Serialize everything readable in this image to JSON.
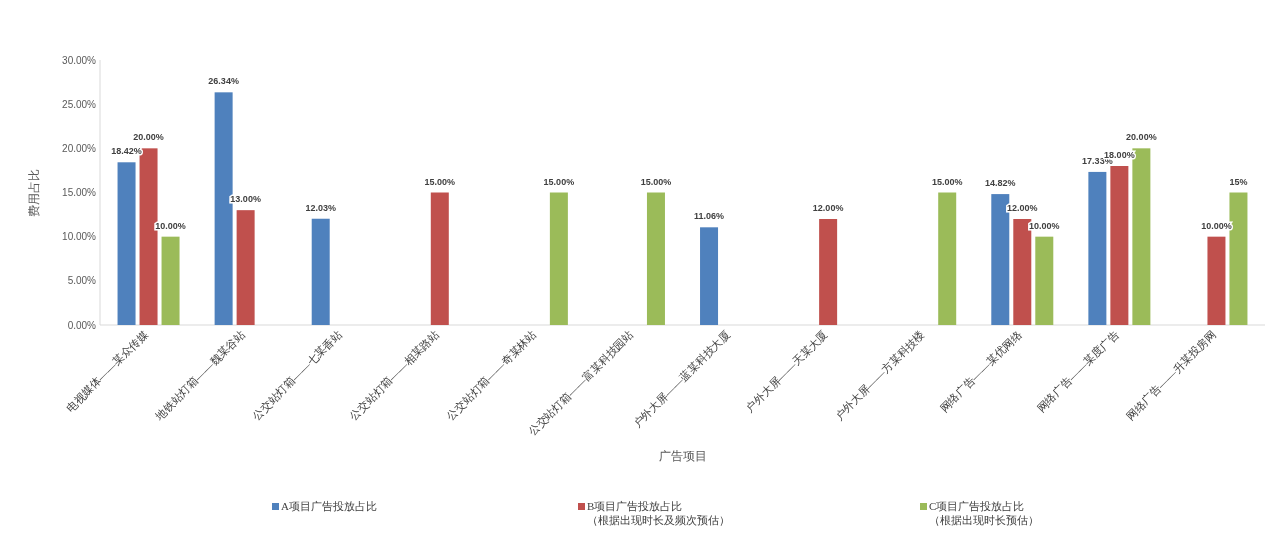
{
  "chart_data": {
    "type": "bar",
    "xlabel": "广告项目",
    "ylabel": "费用占比",
    "categories": [
      "电视媒体——某众传媒",
      "地铁站灯箱——魏某谷站",
      "公交站灯箱——七某香站",
      "公交站灯箱——相某路站",
      "公交站灯箱——奇某林站",
      "公交站灯箱——富某科技园站",
      "户外大屏——蓝某科技大厦",
      "户外大屏——天某大厦",
      "户外大屏——方某科技楼",
      "网络广告——某优网络",
      "网络广告——某度广告",
      "网络广告——升某投房网"
    ],
    "series": [
      {
        "name": "A项目广告投放占比",
        "color": "#4f81bd",
        "values": [
          18.42,
          26.34,
          12.03,
          null,
          null,
          null,
          11.06,
          null,
          null,
          14.82,
          17.33,
          null
        ],
        "value_labels": [
          "18.42%",
          "26.34%",
          "12.03%",
          null,
          null,
          null,
          "11.06%",
          null,
          null,
          "14.82%",
          "17.33%",
          null
        ]
      },
      {
        "name": "B项目广告投放占比（根据出现时长及频次预估）",
        "color": "#c0504d",
        "values": [
          20,
          13,
          null,
          15,
          null,
          null,
          null,
          12,
          null,
          12,
          18,
          10
        ],
        "value_labels": [
          "20.00%",
          "13.00%",
          null,
          "15.00%",
          null,
          null,
          null,
          "12.00%",
          null,
          "12.00%",
          "18.00%",
          "10.00%"
        ]
      },
      {
        "name": "C项目广告投放占比（根据出现时长预估）",
        "color": "#9bbb59",
        "values": [
          10,
          null,
          null,
          null,
          15,
          15,
          null,
          null,
          15,
          10,
          20,
          15
        ],
        "value_labels": [
          "10.00%",
          null,
          null,
          null,
          "15.00%",
          "15.00%",
          null,
          null,
          "15.00%",
          "10.00%",
          "20.00%",
          "15%"
        ]
      }
    ],
    "ylim": [
      0,
      30
    ],
    "yticks": [
      {
        "value": 0,
        "label": "0.00%"
      },
      {
        "value": 5,
        "label": "5.00%"
      },
      {
        "value": 10,
        "label": "10.00%"
      },
      {
        "value": 15,
        "label": "15.00%"
      },
      {
        "value": 20,
        "label": "20.00%"
      },
      {
        "value": 25,
        "label": "25.00%"
      },
      {
        "value": 30,
        "label": "30.00%"
      }
    ],
    "grid": false,
    "legend": "bottom"
  }
}
